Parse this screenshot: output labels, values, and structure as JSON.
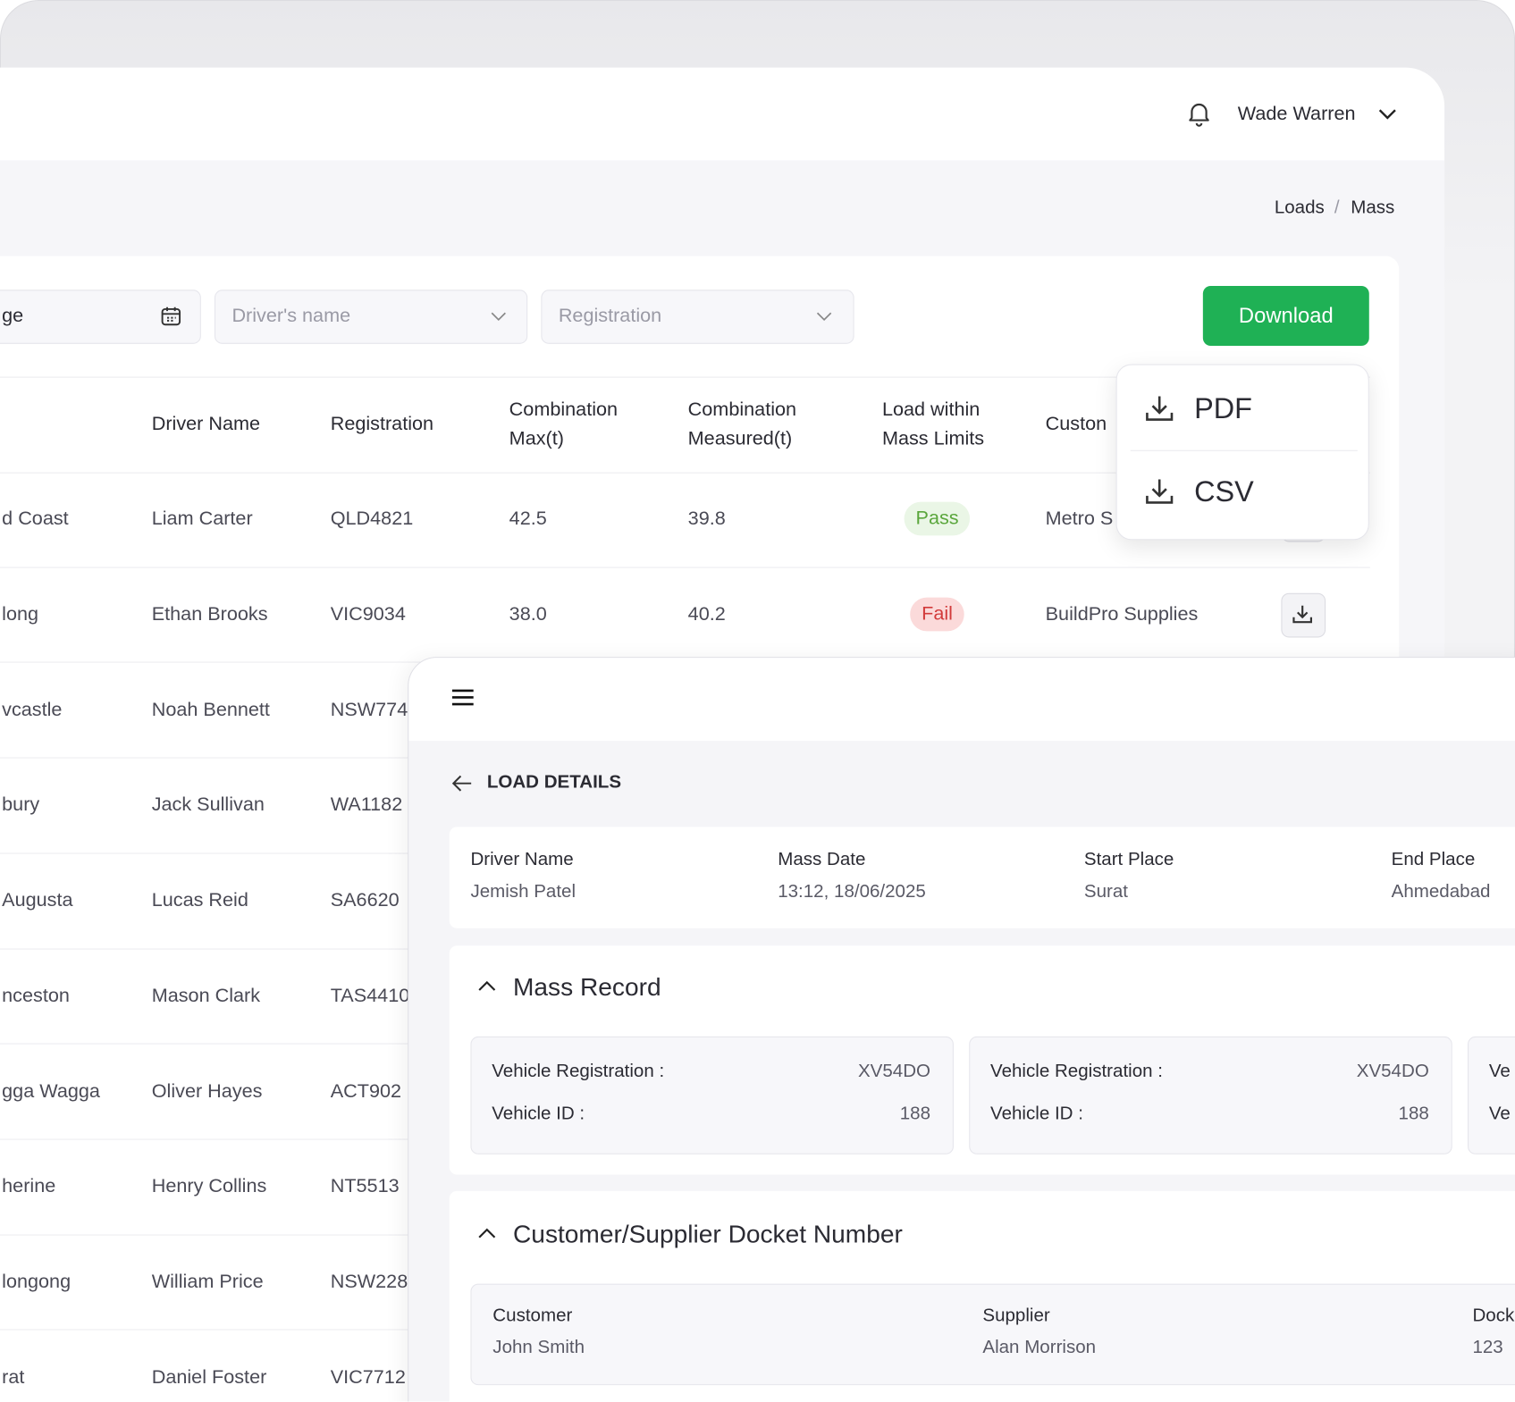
{
  "header": {
    "user_name": "Wade Warren"
  },
  "breadcrumb": [
    "Loads",
    "/",
    "Mass"
  ],
  "filters": {
    "date": "ge",
    "driver": "Driver's name",
    "registration": "Registration"
  },
  "download": {
    "button": "Download",
    "options": [
      "PDF",
      "CSV"
    ]
  },
  "table": {
    "columns": [
      "Driver Name",
      "Registration",
      "Combination Max(t)",
      "Combination Measured(t)",
      "Load within Mass Limits",
      "Custon"
    ],
    "rows": [
      [
        "d Coast",
        "Liam Carter",
        "QLD4821",
        "42.5",
        "39.8",
        "Pass",
        "Metro S"
      ],
      [
        "long",
        "Ethan Brooks",
        "VIC9034",
        "38.0",
        "40.2",
        "Fail",
        "BuildPro Supplies"
      ],
      [
        "vcastle",
        "Noah Bennett",
        "NSW774"
      ],
      [
        "bury",
        "Jack Sullivan",
        "WA1182"
      ],
      [
        "Augusta",
        "Lucas Reid",
        "SA6620"
      ],
      [
        "nceston",
        "Mason Clark",
        "TAS4410"
      ],
      [
        "gga Wagga",
        "Oliver Hayes",
        "ACT902"
      ],
      [
        "herine",
        "Henry Collins",
        "NT5513"
      ],
      [
        "longong",
        "William Price",
        "NSW228"
      ],
      [
        "rat",
        "Daniel Foster",
        "VIC7712"
      ]
    ]
  },
  "load_details": {
    "title": "LOAD DETAILS",
    "summary": [
      {
        "label": "Driver Name",
        "value": "Jemish Patel"
      },
      {
        "label": "Mass Date",
        "value": "13:12, 18/06/2025"
      },
      {
        "label": "Start Place",
        "value": "Surat"
      },
      {
        "label": "End Place",
        "value": "Ahmedabad"
      }
    ],
    "mass_record": {
      "title": "Mass Record",
      "vehicles": [
        {
          "registration_label": "Vehicle Registration :",
          "registration": "XV54DO",
          "id_label": "Vehicle ID :",
          "id": "188"
        },
        {
          "registration_label": "Vehicle Registration :",
          "registration": "XV54DO",
          "id_label": "Vehicle ID :",
          "id": "188"
        },
        {
          "registration_label": "Ve",
          "id_label": "Ve"
        }
      ]
    },
    "docket": {
      "title": "Customer/Supplier Docket Number",
      "fields": [
        {
          "label": "Customer",
          "value": "John Smith"
        },
        {
          "label": "Supplier",
          "value": "Alan Morrison"
        },
        {
          "label": "Dock",
          "value": "123"
        }
      ]
    }
  }
}
